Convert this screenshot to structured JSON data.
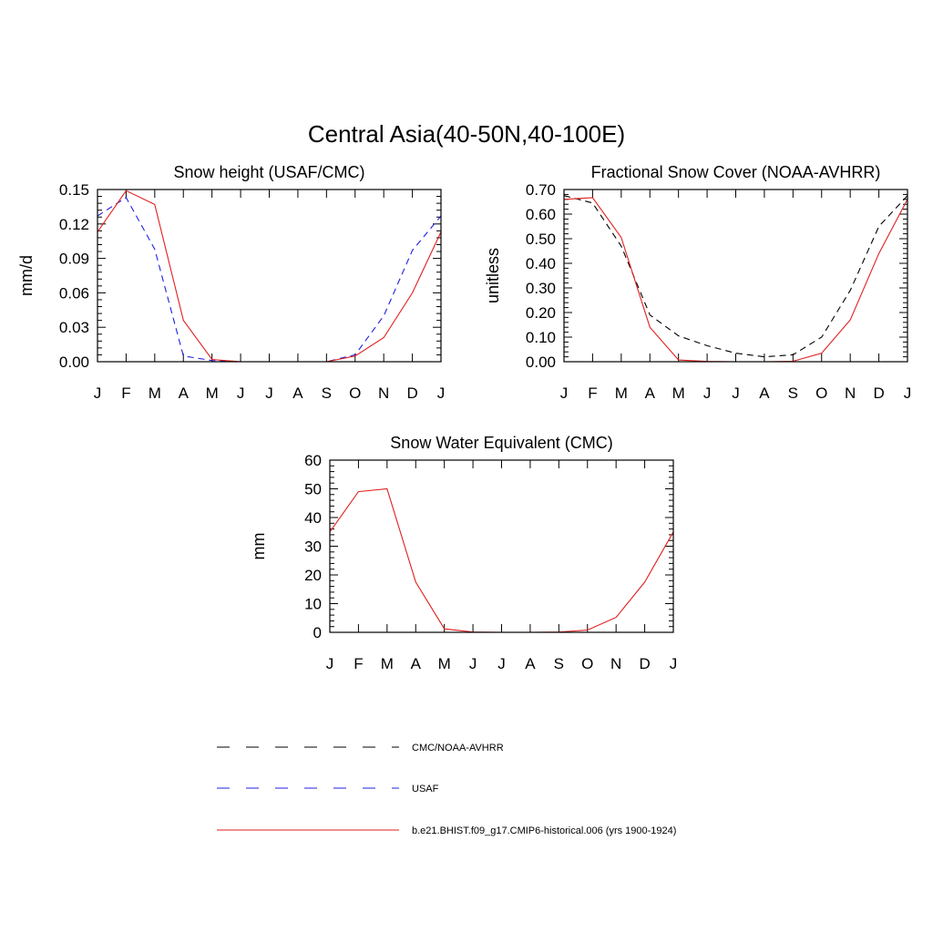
{
  "figure": {
    "title": "Central Asia(40-50N,40-100E)"
  },
  "legend": [
    {
      "label": "CMC/NOAA-AVHRR",
      "color": "#000000",
      "dash": "dashed"
    },
    {
      "label": "USAF",
      "color": "#1f1fe0",
      "dash": "dashed"
    },
    {
      "label": "b.e21.BHIST.f09_g17.CMIP6-historical.006 (yrs 1900-1924)",
      "color": "#e01f1f",
      "dash": "solid"
    }
  ],
  "chart_data": [
    {
      "type": "line",
      "title": "Snow height (USAF/CMC)",
      "xlabel": "",
      "ylabel": "mm/d",
      "categories": [
        "J",
        "F",
        "M",
        "A",
        "M",
        "J",
        "J",
        "A",
        "S",
        "O",
        "N",
        "D",
        "J"
      ],
      "ylim": [
        0,
        0.15
      ],
      "yticks": [
        "0.00",
        "0.03",
        "0.06",
        "0.09",
        "0.12",
        "0.15"
      ],
      "series": [
        {
          "name": "CMC/NOAA-AVHRR",
          "color": "#000000",
          "dash": "dashed",
          "values": [
            0,
            0,
            0,
            0,
            0,
            0,
            0,
            0,
            0,
            0,
            0,
            0,
            0
          ]
        },
        {
          "name": "USAF",
          "color": "#1f1fe0",
          "dash": "dashed",
          "values": [
            0.127,
            0.143,
            0.098,
            0.005,
            0.001,
            0.0,
            0.0,
            0.0,
            0.0,
            0.006,
            0.04,
            0.097,
            0.127
          ]
        },
        {
          "name": "b.e21.BHIST.f09_g17.CMIP6-historical.006 (yrs 1900-1924)",
          "color": "#e01f1f",
          "dash": "solid",
          "values": [
            0.113,
            0.149,
            0.137,
            0.036,
            0.002,
            0.0,
            0.0,
            0.0,
            0.0,
            0.005,
            0.021,
            0.06,
            0.113
          ]
        }
      ]
    },
    {
      "type": "line",
      "title": "Fractional Snow Cover (NOAA-AVHRR)",
      "xlabel": "",
      "ylabel": "unitless",
      "categories": [
        "J",
        "F",
        "M",
        "A",
        "M",
        "J",
        "J",
        "A",
        "S",
        "O",
        "N",
        "D",
        "J"
      ],
      "ylim": [
        0,
        0.7
      ],
      "yticks": [
        "0.00",
        "0.10",
        "0.20",
        "0.30",
        "0.40",
        "0.50",
        "0.60",
        "0.70"
      ],
      "series": [
        {
          "name": "CMC/NOAA-AVHRR",
          "color": "#000000",
          "dash": "dashed",
          "values": [
            0.675,
            0.645,
            0.47,
            0.19,
            0.105,
            0.065,
            0.035,
            0.02,
            0.028,
            0.1,
            0.29,
            0.55,
            0.675
          ]
        },
        {
          "name": "b.e21.BHIST.f09_g17.CMIP6-historical.006 (yrs 1900-1924)",
          "color": "#e01f1f",
          "dash": "solid",
          "values": [
            0.66,
            0.667,
            0.505,
            0.14,
            0.007,
            0.001,
            0.0,
            0.0,
            0.002,
            0.035,
            0.17,
            0.44,
            0.66
          ]
        }
      ]
    },
    {
      "type": "line",
      "title": "Snow Water Equivalent (CMC)",
      "xlabel": "",
      "ylabel": "mm",
      "categories": [
        "J",
        "F",
        "M",
        "A",
        "M",
        "J",
        "J",
        "A",
        "S",
        "O",
        "N",
        "D",
        "J"
      ],
      "ylim": [
        0,
        60
      ],
      "yticks": [
        "0",
        "10",
        "20",
        "30",
        "40",
        "50",
        "60"
      ],
      "series": [
        {
          "name": "CMC/NOAA-AVHRR",
          "color": "#000000",
          "dash": "dashed",
          "values": [
            0,
            0,
            0,
            0,
            0,
            0,
            0,
            0,
            0,
            0,
            0,
            0,
            0
          ]
        },
        {
          "name": "b.e21.BHIST.f09_g17.CMIP6-historical.006 (yrs 1900-1924)",
          "color": "#e01f1f",
          "dash": "solid",
          "values": [
            35,
            49,
            50,
            17.5,
            1.2,
            0.1,
            0.0,
            0.0,
            0.1,
            0.8,
            5.2,
            17.5,
            35
          ]
        }
      ]
    }
  ]
}
